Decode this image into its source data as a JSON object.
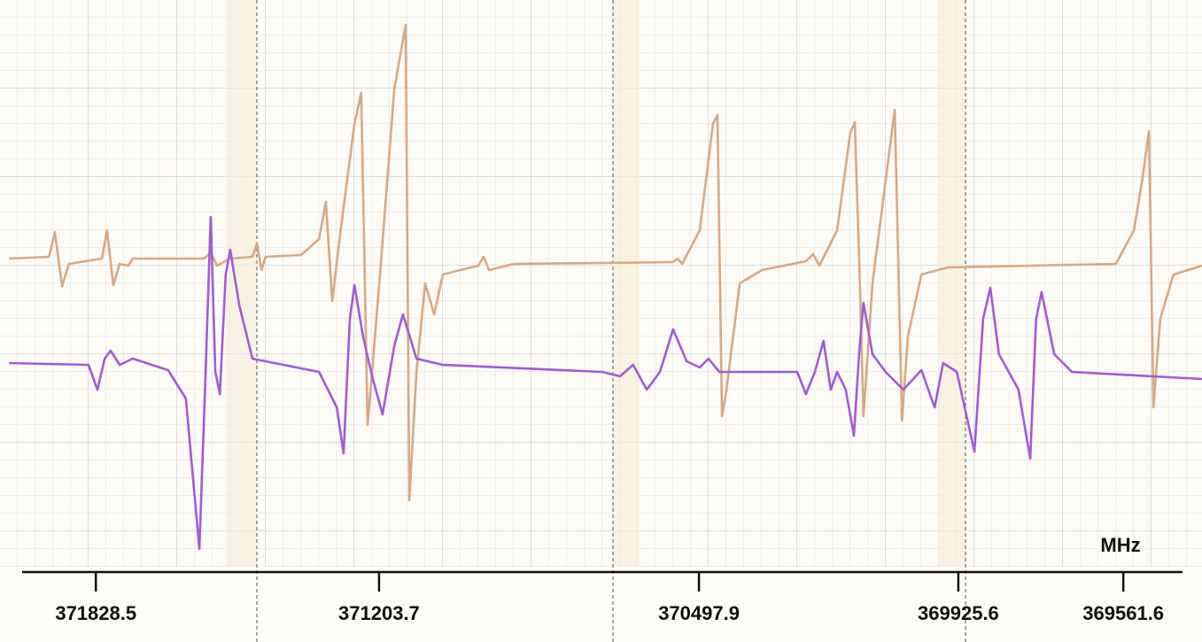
{
  "chart_data": {
    "type": "line",
    "x_label": "MHz",
    "xlim": [
      372040,
      369388
    ],
    "ylim": [
      0,
      640
    ],
    "xticks": [
      371828.5,
      371203.7,
      370497.9,
      369925.6,
      369561.6
    ],
    "series": [
      {
        "color": "#d9a882",
        "x": [
          372020,
          371932,
          371919,
          371903,
          371888,
          371815,
          371804,
          371790,
          371776,
          371757,
          371747,
          371590,
          371575,
          371561,
          371532,
          371483,
          371473,
          371463,
          371454,
          371376,
          371336,
          371321,
          371307,
          371291,
          371258,
          371243,
          371229,
          371219,
          371200,
          371170,
          371145,
          371137,
          371121,
          371102,
          371082,
          371063,
          370985,
          370973,
          370961,
          370906,
          370555,
          370545,
          370535,
          370496,
          370467,
          370457,
          370447,
          370437,
          370408,
          370359,
          370262,
          370246,
          370232,
          370193,
          370164,
          370154,
          370144,
          370135,
          370115,
          370080,
          370066,
          370050,
          370037,
          370007,
          369949,
          369578,
          369538,
          369519,
          369505,
          369495,
          369480,
          369451,
          369388
        ],
        "values": [
          348,
          350,
          378,
          317,
          342,
          348,
          380,
          318,
          342,
          340,
          348,
          348,
          355,
          340,
          348,
          350,
          365,
          335,
          350,
          352,
          370,
          412,
          300,
          370,
          500,
          535,
          160,
          220,
          340,
          540,
          612,
          75,
          220,
          320,
          285,
          330,
          340,
          350,
          335,
          342,
          344,
          348,
          342,
          380,
          500,
          510,
          170,
          200,
          320,
          335,
          345,
          353,
          340,
          380,
          490,
          502,
          340,
          170,
          320,
          460,
          516,
          165,
          260,
          330,
          338,
          342,
          380,
          440,
          492,
          180,
          280,
          330,
          340
        ]
      },
      {
        "color": "#a35ad8",
        "x": [
          372020,
          371845,
          371825,
          371809,
          371796,
          371776,
          371747,
          371669,
          371630,
          371600,
          371587,
          371575,
          371565,
          371555,
          371542,
          371532,
          371512,
          371483,
          371454,
          371336,
          371297,
          371282,
          371268,
          371258,
          371239,
          371219,
          371196,
          371170,
          371151,
          371121,
          371063,
          370711,
          370672,
          370643,
          370613,
          370584,
          370555,
          370525,
          370496,
          370477,
          370453,
          370281,
          370262,
          370242,
          370223,
          370207,
          370193,
          370174,
          370156,
          370144,
          370135,
          370115,
          370086,
          370047,
          370007,
          369978,
          369959,
          369929,
          369890,
          369871,
          369855,
          369836,
          369793,
          369767,
          369754,
          369742,
          369714,
          369675,
          369388
        ],
        "values": [
          230,
          228,
          200,
          235,
          244,
          228,
          235,
          222,
          190,
          20,
          210,
          395,
          220,
          195,
          330,
          358,
          295,
          235,
          232,
          220,
          180,
          128,
          280,
          318,
          260,
          215,
          172,
          250,
          285,
          235,
          228,
          220,
          215,
          228,
          200,
          220,
          268,
          232,
          225,
          235,
          220,
          220,
          195,
          220,
          255,
          200,
          220,
          200,
          148,
          245,
          298,
          240,
          220,
          200,
          222,
          180,
          230,
          220,
          130,
          280,
          315,
          240,
          200,
          122,
          280,
          310,
          240,
          220,
          212
        ]
      }
    ]
  }
}
